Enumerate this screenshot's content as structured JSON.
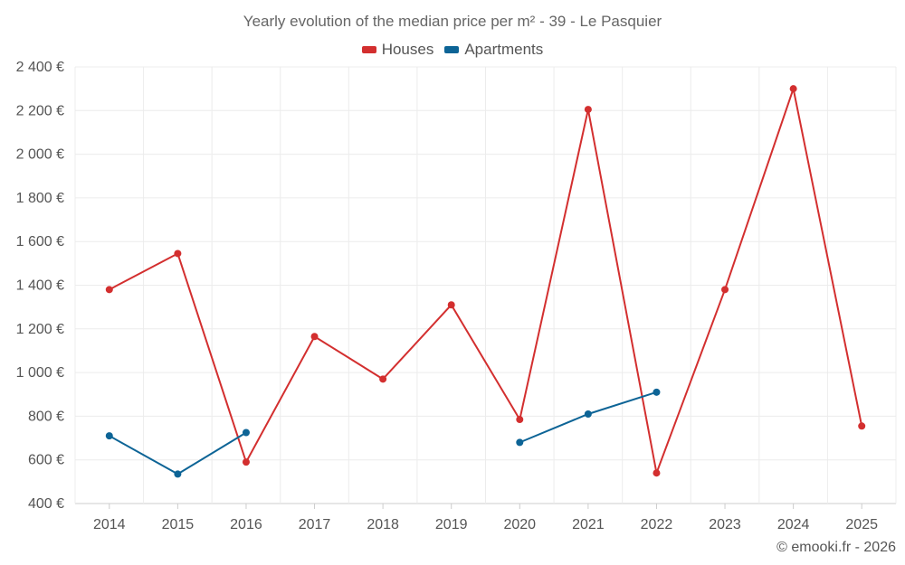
{
  "chart_data": {
    "type": "line",
    "title": "Yearly evolution of the median price per m² - 39 - Le Pasquier",
    "categories": [
      "2014",
      "2015",
      "2016",
      "2017",
      "2018",
      "2019",
      "2020",
      "2021",
      "2022",
      "2023",
      "2024",
      "2025"
    ],
    "ylim": [
      400,
      2400
    ],
    "yticks": [
      400,
      600,
      800,
      1000,
      1200,
      1400,
      1600,
      1800,
      2000,
      2200,
      2400
    ],
    "ytick_labels": [
      "400 €",
      "600 €",
      "800 €",
      "1 000 €",
      "1 200 €",
      "1 400 €",
      "1 600 €",
      "1 800 €",
      "2 000 €",
      "2 200 €",
      "2 400 €"
    ],
    "legend_position": "top-center",
    "grid": true,
    "series": [
      {
        "name": "Houses",
        "color": "#d32f2f",
        "values": [
          1380,
          1545,
          590,
          1165,
          970,
          1310,
          785,
          2205,
          540,
          1380,
          2300,
          755
        ]
      },
      {
        "name": "Apartments",
        "color": "#0d6496",
        "values": [
          710,
          535,
          725,
          null,
          null,
          null,
          680,
          810,
          910,
          null,
          null,
          null
        ]
      }
    ]
  },
  "credit": "© emooki.fr - 2026"
}
